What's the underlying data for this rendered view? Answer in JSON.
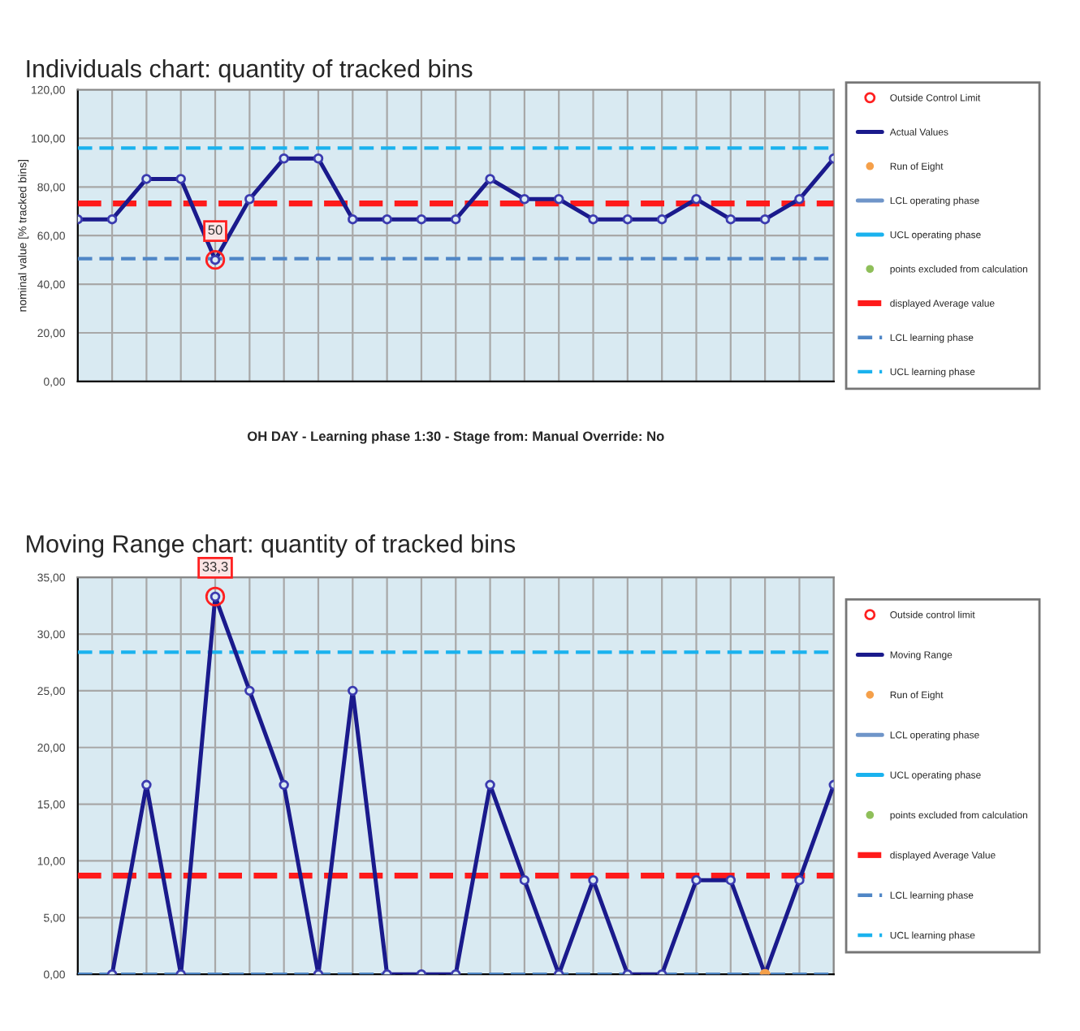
{
  "chart_data": [
    {
      "type": "line",
      "title": "Individuals chart: quantity of tracked bins",
      "ylabel": "nominal value [% tracked bins]",
      "xlabel": "OH DAY - Learning phase 1:30 - Stage from: Manual Override: No",
      "categories": [
        null,
        null,
        null,
        null,
        null,
        null,
        null,
        null,
        null,
        null,
        null,
        null,
        null,
        null,
        null,
        null,
        null,
        null,
        null,
        null,
        null,
        null,
        null
      ],
      "ylim": [
        0,
        120
      ],
      "yticks": [
        {
          "value": 0,
          "label": "0,00"
        },
        {
          "value": 20,
          "label": "20,00"
        },
        {
          "value": 40,
          "label": "40,00"
        },
        {
          "value": 60,
          "label": "60,00"
        },
        {
          "value": 80,
          "label": "80,00"
        },
        {
          "value": 100,
          "label": "100,00"
        },
        {
          "value": 120,
          "label": "120,00"
        }
      ],
      "grid": true,
      "legend": "right",
      "tick_labels": "y",
      "series": [
        {
          "name": "Outside Control Limit",
          "type": "scatter",
          "color": "#ff2020",
          "values": [
            null,
            null,
            null,
            null,
            50,
            null,
            null,
            null,
            null,
            null,
            null,
            null,
            null,
            null,
            null,
            null,
            null,
            null,
            null,
            null,
            null,
            null,
            null
          ],
          "value_labels": [
            null,
            null,
            null,
            null,
            "50",
            null,
            null,
            null,
            null,
            null,
            null,
            null,
            null,
            null,
            null,
            null,
            null,
            null,
            null,
            null,
            null,
            null,
            null
          ]
        },
        {
          "name": "Actual Values",
          "color": "#1a1a8c",
          "marker": "circle",
          "line_style": "solid",
          "values": [
            66.7,
            66.7,
            83.3,
            83.3,
            50,
            75,
            91.7,
            91.7,
            66.7,
            66.7,
            66.7,
            66.7,
            83.3,
            75,
            75,
            66.7,
            66.7,
            66.7,
            75,
            66.7,
            66.7,
            75,
            91.7
          ]
        },
        {
          "name": "Run of Eight",
          "type": "scatter",
          "color": "#f5a04a",
          "values": [
            null,
            null,
            null,
            null,
            null,
            null,
            null,
            null,
            null,
            null,
            null,
            null,
            null,
            null,
            null,
            null,
            null,
            null,
            null,
            null,
            null,
            null,
            null
          ]
        },
        {
          "name": "LCL operating phase",
          "type": "line",
          "color": "#6f95c9",
          "line_style": "solid",
          "values": [
            null,
            null,
            null,
            null,
            null,
            null,
            null,
            null,
            null,
            null,
            null,
            null,
            null,
            null,
            null,
            null,
            null,
            null,
            null,
            null,
            null,
            null,
            null
          ]
        },
        {
          "name": "UCL operating phase",
          "type": "line",
          "color": "#1ab2ee",
          "line_style": "solid",
          "values": [
            null,
            null,
            null,
            null,
            null,
            null,
            null,
            null,
            null,
            null,
            null,
            null,
            null,
            null,
            null,
            null,
            null,
            null,
            null,
            null,
            null,
            null,
            null
          ]
        },
        {
          "name": "points excluded from calculation",
          "type": "scatter",
          "color": "#8fbf5a",
          "values": [
            null,
            null,
            null,
            null,
            null,
            null,
            null,
            null,
            null,
            null,
            null,
            null,
            null,
            null,
            null,
            null,
            null,
            null,
            null,
            null,
            null,
            null,
            null
          ]
        }
      ],
      "ref_lines": [
        {
          "axis": "y",
          "value": 73.2,
          "label": "displayed Average value",
          "color": "#ff1a1a",
          "line_style": "dashed"
        },
        {
          "axis": "y",
          "value": 50.5,
          "label": "LCL learning phase",
          "color": "#4f86c6",
          "line_style": "dashed"
        },
        {
          "axis": "y",
          "value": 96,
          "label": "UCL learning phase",
          "color": "#1ab2ee",
          "line_style": "dashed"
        }
      ]
    },
    {
      "type": "line",
      "title": "Moving Range chart: quantity of tracked bins",
      "categories": [
        null,
        null,
        null,
        null,
        null,
        null,
        null,
        null,
        null,
        null,
        null,
        null,
        null,
        null,
        null,
        null,
        null,
        null,
        null,
        null,
        null,
        null,
        null
      ],
      "ylim": [
        0,
        35
      ],
      "yticks": [
        {
          "value": 0,
          "label": "0,00"
        },
        {
          "value": 5,
          "label": "5,00"
        },
        {
          "value": 10,
          "label": "10,00"
        },
        {
          "value": 15,
          "label": "15,00"
        },
        {
          "value": 20,
          "label": "20,00"
        },
        {
          "value": 25,
          "label": "25,00"
        },
        {
          "value": 30,
          "label": "30,00"
        },
        {
          "value": 35,
          "label": "35,00"
        }
      ],
      "grid": true,
      "legend": "right",
      "tick_labels": "y",
      "series": [
        {
          "name": "Outside control limit",
          "type": "scatter",
          "color": "#ff2020",
          "values": [
            null,
            null,
            null,
            null,
            33.3,
            null,
            null,
            null,
            null,
            null,
            null,
            null,
            null,
            null,
            null,
            null,
            null,
            null,
            null,
            null,
            null,
            null,
            null
          ],
          "value_labels": [
            null,
            null,
            null,
            null,
            "33,3",
            null,
            null,
            null,
            null,
            null,
            null,
            null,
            null,
            null,
            null,
            null,
            null,
            null,
            null,
            null,
            null,
            null,
            null
          ]
        },
        {
          "name": "Moving Range",
          "color": "#1a1a8c",
          "marker": "circle",
          "line_style": "solid",
          "values": [
            null,
            0,
            16.7,
            0,
            33.3,
            25,
            16.7,
            0,
            25,
            0,
            0,
            0,
            16.7,
            8.3,
            0,
            8.3,
            0,
            0,
            8.3,
            8.3,
            0,
            8.3,
            16.7
          ]
        },
        {
          "name": "Run of Eight",
          "type": "scatter",
          "color": "#f5a04a",
          "values": [
            null,
            null,
            null,
            null,
            null,
            null,
            null,
            null,
            null,
            null,
            null,
            null,
            null,
            null,
            null,
            null,
            null,
            null,
            null,
            null,
            0,
            null,
            null
          ]
        },
        {
          "name": "LCL operating phase",
          "type": "line",
          "color": "#6f95c9",
          "line_style": "solid",
          "values": [
            null,
            null,
            null,
            null,
            null,
            null,
            null,
            null,
            null,
            null,
            null,
            null,
            null,
            null,
            null,
            null,
            null,
            null,
            null,
            null,
            null,
            null,
            null
          ]
        },
        {
          "name": "UCL operating phase",
          "type": "line",
          "color": "#1ab2ee",
          "line_style": "solid",
          "values": [
            null,
            null,
            null,
            null,
            null,
            null,
            null,
            null,
            null,
            null,
            null,
            null,
            null,
            null,
            null,
            null,
            null,
            null,
            null,
            null,
            null,
            null,
            null
          ]
        },
        {
          "name": "points excluded from calculation",
          "type": "scatter",
          "color": "#8fbf5a",
          "values": [
            null,
            null,
            null,
            null,
            null,
            null,
            null,
            null,
            null,
            null,
            null,
            null,
            null,
            null,
            null,
            null,
            null,
            null,
            null,
            null,
            null,
            null,
            null
          ]
        }
      ],
      "ref_lines": [
        {
          "axis": "y",
          "value": 8.7,
          "label": "displayed Average Value",
          "color": "#ff1a1a",
          "line_style": "dashed"
        },
        {
          "axis": "y",
          "value": 0,
          "label": "LCL learning phase",
          "color": "#4f86c6",
          "line_style": "dashed"
        },
        {
          "axis": "y",
          "value": 28.4,
          "label": "UCL learning phase",
          "color": "#1ab2ee",
          "line_style": "dashed"
        }
      ]
    }
  ]
}
